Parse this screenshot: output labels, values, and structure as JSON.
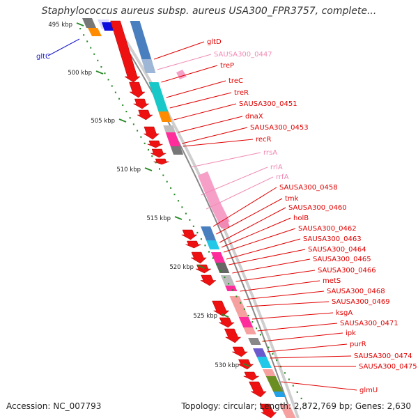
{
  "title": "Staphylococcus aureus subsp. aureus USA300_FPR3757, complete...",
  "footer": {
    "accession": "Accession: NC_007793",
    "summary": "Topology: circular; Length: 2,872,769 bp; Genes: 2,630"
  },
  "scale_labels": [
    "495 kbp",
    "500 kbp",
    "505 kbp",
    "510 kbp",
    "515 kbp",
    "520 kbp",
    "525 kbp",
    "530 kbp"
  ],
  "left_label": "gltC",
  "gene_labels": [
    {
      "text": "gltD",
      "color": "#e00000"
    },
    {
      "text": "SAUSA300_0447",
      "color": "#f08ab4"
    },
    {
      "text": "treP",
      "color": "#e00000"
    },
    {
      "text": "treC",
      "color": "#e00000"
    },
    {
      "text": "treR",
      "color": "#e00000"
    },
    {
      "text": "SAUSA300_0451",
      "color": "#e00000"
    },
    {
      "text": "dnaX",
      "color": "#e00000"
    },
    {
      "text": "SAUSA300_0453",
      "color": "#e00000"
    },
    {
      "text": "recR",
      "color": "#e00000"
    },
    {
      "text": "rrsA",
      "color": "#f08ab4"
    },
    {
      "text": "rrlA",
      "color": "#f08ab4"
    },
    {
      "text": "rrfA",
      "color": "#f08ab4"
    },
    {
      "text": "SAUSA300_0458",
      "color": "#e00000"
    },
    {
      "text": "tmk",
      "color": "#e00000"
    },
    {
      "text": "SAUSA300_0460",
      "color": "#e00000"
    },
    {
      "text": "holB",
      "color": "#e00000"
    },
    {
      "text": "SAUSA300_0462",
      "color": "#e00000"
    },
    {
      "text": "SAUSA300_0463",
      "color": "#e00000"
    },
    {
      "text": "SAUSA300_0464",
      "color": "#e00000"
    },
    {
      "text": "SAUSA300_0465",
      "color": "#e00000"
    },
    {
      "text": "SAUSA300_0466",
      "color": "#e00000"
    },
    {
      "text": "metS",
      "color": "#e00000"
    },
    {
      "text": "SAUSA300_0468",
      "color": "#e00000"
    },
    {
      "text": "SAUSA300_0469",
      "color": "#e00000"
    },
    {
      "text": "ksgA",
      "color": "#e00000"
    },
    {
      "text": "SAUSA300_0471",
      "color": "#e00000"
    },
    {
      "text": "ipk",
      "color": "#e00000"
    },
    {
      "text": "purR",
      "color": "#e00000"
    },
    {
      "text": "SAUSA300_0474",
      "color": "#e00000"
    },
    {
      "text": "SAUSA300_0475",
      "color": "#e00000"
    },
    {
      "text": "glmU",
      "color": "#e00000"
    }
  ],
  "colors": {
    "cds": "#ee1111",
    "rrna": "#f6a0c8",
    "backbone": "#a8a8a8",
    "label_line_red": "#e00000",
    "label_line_pink": "#f08ab4",
    "scale_dots": "#2a8a2a",
    "left_label": "#1a1acc"
  }
}
